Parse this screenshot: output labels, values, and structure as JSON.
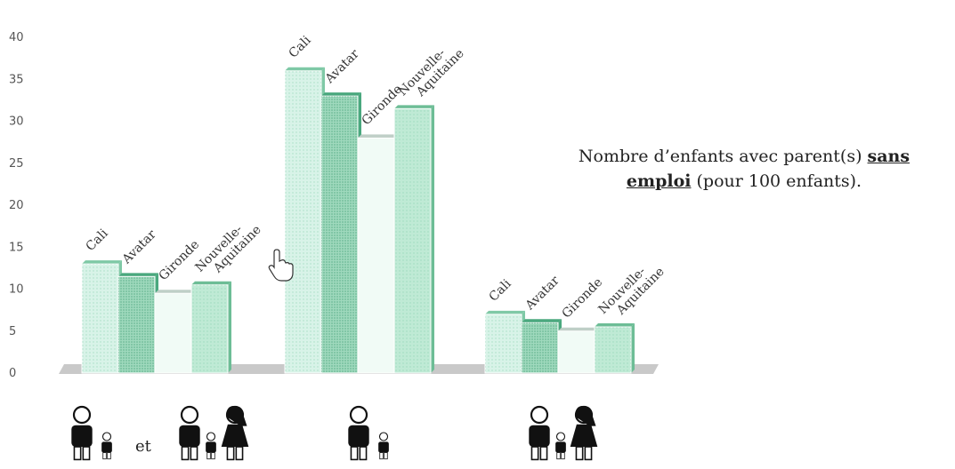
{
  "chart_data": {
    "type": "bar",
    "ylim": [
      0,
      40
    ],
    "yticks": [
      0,
      5,
      10,
      15,
      20,
      25,
      30,
      35,
      40
    ],
    "groups": [
      {
        "family": "two-parents",
        "values": [
          13,
          11.5,
          9.5,
          10.5
        ],
        "categories": [
          "Cali",
          "Avatar",
          "Gironde",
          "Nouvelle-\nAquitaine"
        ],
        "connector": "et"
      },
      {
        "family": "one-parent",
        "values": [
          36,
          33,
          28,
          31.5
        ],
        "categories": [
          "Cali",
          "Avatar",
          "Gironde",
          "Nouvelle-\nAquitaine"
        ]
      },
      {
        "family": "two-parents",
        "values": [
          7,
          6,
          5,
          5.5
        ],
        "categories": [
          "Cali",
          "Avatar",
          "Gironde",
          "Nouvelle-\nAquitaine"
        ]
      }
    ],
    "series_colors": [
      "#d8f3e8",
      "#9fd9bd",
      "#f1fbf6",
      "#bfead5"
    ],
    "series_side_colors": [
      "#7fc9a6",
      "#4aa87e",
      "#bfcfc7",
      "#6dbd96"
    ],
    "series_patterns": [
      "dots",
      "dense",
      "plain",
      "dots"
    ],
    "annotation": {
      "before": "Nombre d’enfants avec parent(s) ",
      "bold": "sans emploi",
      "after": " (pour 100 enfants)."
    }
  }
}
